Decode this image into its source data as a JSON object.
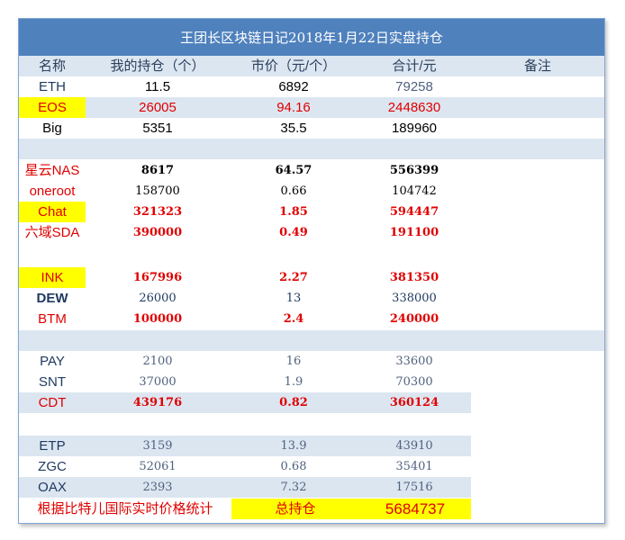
{
  "title": "王团长区块链日记2018年1月22日实盘持仓",
  "headers": [
    "名称",
    "我的持仓（个）",
    "市价（元/个）",
    "合计/元",
    "备注"
  ],
  "rows": {
    "r1": {
      "name": "ETH",
      "qty": "11.5",
      "price": "6892",
      "total": "79258"
    },
    "r2": {
      "name": "EOS",
      "qty": "26005",
      "price": "94.16",
      "total": "2448630"
    },
    "r3": {
      "name": "Big",
      "qty": "5351",
      "price": "35.5",
      "total": "189960"
    },
    "r4": {
      "name": "星云NAS",
      "qty": "8617",
      "price": "64.57",
      "total": "556399"
    },
    "r5": {
      "name": "oneroot",
      "qty": "158700",
      "price": "0.66",
      "total": "104742"
    },
    "r6": {
      "name": "Chat",
      "qty": "321323",
      "price": "1.85",
      "total": "594447"
    },
    "r7": {
      "name": "六域SDA",
      "qty": "390000",
      "price": "0.49",
      "total": "191100"
    },
    "r8": {
      "name": "INK",
      "qty": "167996",
      "price": "2.27",
      "total": "381350"
    },
    "r9": {
      "name": "DEW",
      "qty": "26000",
      "price": "13",
      "total": "338000"
    },
    "r10": {
      "name": "BTM",
      "qty": "100000",
      "price": "2.4",
      "total": "240000"
    },
    "r11": {
      "name": "PAY",
      "qty": "2100",
      "price": "16",
      "total": "33600"
    },
    "r12": {
      "name": "SNT",
      "qty": "37000",
      "price": "1.9",
      "total": "70300"
    },
    "r13": {
      "name": "CDT",
      "qty": "439176",
      "price": "0.82",
      "total": "360124"
    },
    "r14": {
      "name": "ETP",
      "qty": "3159",
      "price": "13.9",
      "total": "43910"
    },
    "r15": {
      "name": "ZGC",
      "qty": "52061",
      "price": "0.68",
      "total": "35401"
    },
    "r16": {
      "name": "OAX",
      "qty": "2393",
      "price": "7.32",
      "total": "17516"
    }
  },
  "footer": {
    "note": "根据比特儿国际实时价格统计",
    "total_label": "总持仓",
    "total_value": "5684737"
  },
  "colors": {
    "header_blue": "#4f81bd",
    "band_blue": "#dce6f1",
    "highlight_yellow": "#ffff00",
    "red": "#e00000",
    "navy": "#1f3a60"
  }
}
